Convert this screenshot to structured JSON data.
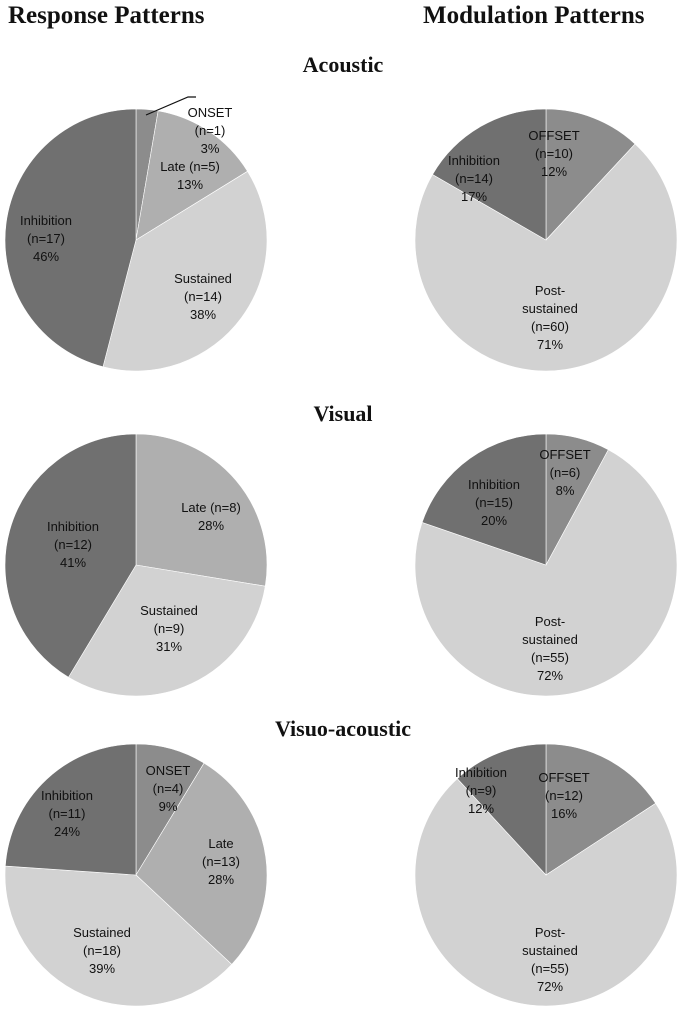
{
  "headers": {
    "left": "Response Patterns",
    "right": "Modulation Patterns"
  },
  "rows": [
    "Acoustic",
    "Visual",
    "Visuo-acoustic"
  ],
  "colors": {
    "ONSET": "#8c8c8c",
    "OFFSET": "#8c8c8c",
    "Late": "#afafaf",
    "Sustained": "#d2d2d2",
    "Post-sustained": "#d2d2d2",
    "Inhibition": "#707070"
  },
  "chart_data": [
    {
      "type": "pie",
      "row": "Acoustic",
      "column": "Response Patterns",
      "slices": [
        {
          "label": "ONSET",
          "n": 1,
          "percent": 3,
          "lines": [
            "ONSET",
            "(n=1)",
            "3%"
          ],
          "color": "#8c8c8c"
        },
        {
          "label": "Late",
          "n": 5,
          "percent": 13,
          "lines": [
            "Late (n=5)",
            "13%"
          ],
          "color": "#afafaf"
        },
        {
          "label": "Sustained",
          "n": 14,
          "percent": 38,
          "lines": [
            "Sustained",
            "(n=14)",
            "38%"
          ],
          "color": "#d2d2d2"
        },
        {
          "label": "Inhibition",
          "n": 17,
          "percent": 46,
          "lines": [
            "Inhibition",
            "(n=17)",
            "46%"
          ],
          "color": "#707070"
        }
      ]
    },
    {
      "type": "pie",
      "row": "Acoustic",
      "column": "Modulation Patterns",
      "slices": [
        {
          "label": "OFFSET",
          "n": 10,
          "percent": 12,
          "lines": [
            "OFFSET",
            "(n=10)",
            "12%"
          ],
          "color": "#8c8c8c"
        },
        {
          "label": "Post-sustained",
          "n": 60,
          "percent": 71,
          "lines": [
            "Post-",
            "sustained",
            "(n=60)",
            "71%"
          ],
          "color": "#d2d2d2"
        },
        {
          "label": "Inhibition",
          "n": 14,
          "percent": 17,
          "lines": [
            "Inhibition",
            "(n=14)",
            "17%"
          ],
          "color": "#707070"
        }
      ]
    },
    {
      "type": "pie",
      "row": "Visual",
      "column": "Response Patterns",
      "slices": [
        {
          "label": "Late",
          "n": 8,
          "percent": 28,
          "lines": [
            "Late (n=8)",
            "28%"
          ],
          "color": "#afafaf"
        },
        {
          "label": "Sustained",
          "n": 9,
          "percent": 31,
          "lines": [
            "Sustained",
            "(n=9)",
            "31%"
          ],
          "color": "#d2d2d2"
        },
        {
          "label": "Inhibition",
          "n": 12,
          "percent": 41,
          "lines": [
            "Inhibition",
            "(n=12)",
            "41%"
          ],
          "color": "#707070"
        }
      ]
    },
    {
      "type": "pie",
      "row": "Visual",
      "column": "Modulation Patterns",
      "slices": [
        {
          "label": "OFFSET",
          "n": 6,
          "percent": 8,
          "lines": [
            "OFFSET",
            "(n=6)",
            "8%"
          ],
          "color": "#8c8c8c"
        },
        {
          "label": "Post-sustained",
          "n": 55,
          "percent": 72,
          "lines": [
            "Post-",
            "sustained",
            "(n=55)",
            "72%"
          ],
          "color": "#d2d2d2"
        },
        {
          "label": "Inhibition",
          "n": 15,
          "percent": 20,
          "lines": [
            "Inhibition",
            "(n=15)",
            "20%"
          ],
          "color": "#707070"
        }
      ]
    },
    {
      "type": "pie",
      "row": "Visuo-acoustic",
      "column": "Response Patterns",
      "slices": [
        {
          "label": "ONSET",
          "n": 4,
          "percent": 9,
          "lines": [
            "ONSET",
            "(n=4)",
            "9%"
          ],
          "color": "#8c8c8c"
        },
        {
          "label": "Late",
          "n": 13,
          "percent": 28,
          "lines": [
            "Late",
            "(n=13)",
            "28%"
          ],
          "color": "#afafaf"
        },
        {
          "label": "Sustained",
          "n": 18,
          "percent": 39,
          "lines": [
            "Sustained",
            "(n=18)",
            "39%"
          ],
          "color": "#d2d2d2"
        },
        {
          "label": "Inhibition",
          "n": 11,
          "percent": 24,
          "lines": [
            "Inhibition",
            "(n=11)",
            "24%"
          ],
          "color": "#707070"
        }
      ]
    },
    {
      "type": "pie",
      "row": "Visuo-acoustic",
      "column": "Modulation Patterns",
      "slices": [
        {
          "label": "OFFSET",
          "n": 12,
          "percent": 16,
          "lines": [
            "OFFSET",
            "(n=12)",
            "16%"
          ],
          "color": "#8c8c8c"
        },
        {
          "label": "Post-sustained",
          "n": 55,
          "percent": 72,
          "lines": [
            "Post-",
            "sustained",
            "(n=55)",
            "72%"
          ],
          "color": "#d2d2d2"
        },
        {
          "label": "Inhibition",
          "n": 9,
          "percent": 12,
          "lines": [
            "Inhibition",
            "(n=9)",
            "12%"
          ],
          "color": "#707070"
        }
      ]
    }
  ]
}
